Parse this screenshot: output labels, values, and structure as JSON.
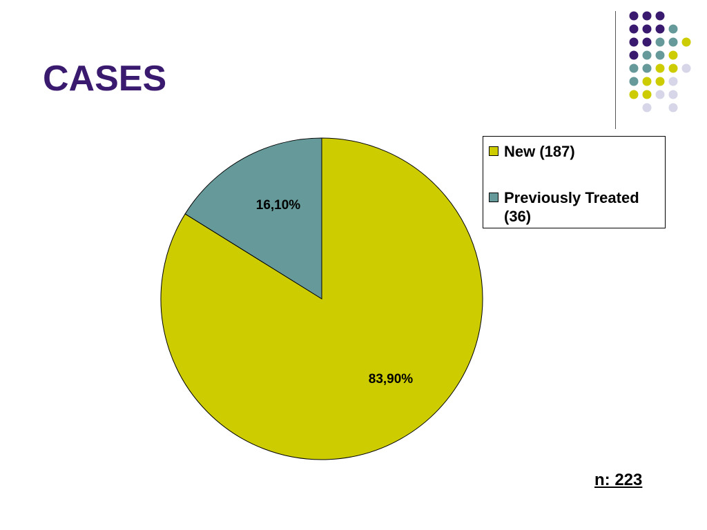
{
  "slide": {
    "title": "CASES",
    "footnote": "n: 223"
  },
  "colors": {
    "title": "#3a1a6e",
    "new": "#cccc00",
    "previously_treated": "#669999",
    "dot_purple": "#3a1a6e",
    "dot_teal": "#669999",
    "dot_yellow": "#cccc00",
    "dot_lavender": "#d6d6e8"
  },
  "decor_dots": [
    [
      "purple",
      "purple",
      "purple",
      null,
      null
    ],
    [
      "purple",
      "purple",
      "purple",
      "teal",
      null
    ],
    [
      "purple",
      "purple",
      "teal",
      "teal",
      "yellow"
    ],
    [
      "purple",
      "teal",
      "teal",
      "yellow",
      null
    ],
    [
      "teal",
      "teal",
      "yellow",
      "yellow",
      "lavender"
    ],
    [
      "teal",
      "yellow",
      "yellow",
      "lavender",
      null
    ],
    [
      "yellow",
      "yellow",
      "lavender",
      "lavender",
      null
    ],
    [
      null,
      "lavender",
      null,
      "lavender",
      null
    ]
  ],
  "chart_data": {
    "type": "pie",
    "title": "",
    "slices": [
      {
        "name": "New (187)",
        "value": 187,
        "percent_label": "83,90%",
        "color": "#cccc00"
      },
      {
        "name": "Previously Treated (36)",
        "value": 36,
        "percent_label": "16,10%",
        "color": "#669999"
      }
    ],
    "legend": {
      "placement": "right",
      "entries": [
        "New (187)",
        "Previously Treated (36)"
      ]
    }
  }
}
